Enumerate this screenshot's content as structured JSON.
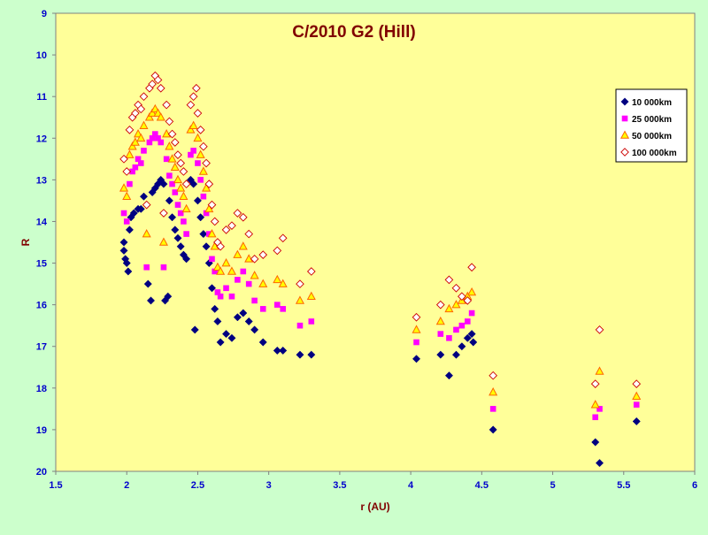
{
  "chart_data": {
    "type": "scatter",
    "title": "C/2010 G2 (Hill)",
    "xlabel": "r (AU)",
    "ylabel": "R",
    "xlim": [
      1.5,
      6
    ],
    "ylim": [
      9,
      20
    ],
    "y_inverted": true,
    "x_ticks": [
      "1.5",
      "2",
      "2.5",
      "3",
      "3.5",
      "4",
      "4.5",
      "5",
      "5.5",
      "6"
    ],
    "y_ticks": [
      "9",
      "10",
      "11",
      "12",
      "13",
      "14",
      "15",
      "16",
      "17",
      "18",
      "19",
      "20"
    ],
    "grid": false,
    "legend_position": "right",
    "colors": {
      "background": "#ccffcc",
      "plot_area": "#ffff99",
      "title": "#800000",
      "axis_text": "#0000cc"
    },
    "series": [
      {
        "name": "10 000km",
        "marker": "diamond",
        "color": "#000080",
        "points": [
          [
            1.98,
            14.5
          ],
          [
            1.98,
            14.7
          ],
          [
            1.99,
            14.9
          ],
          [
            2.0,
            15.0
          ],
          [
            2.01,
            15.2
          ],
          [
            2.02,
            14.2
          ],
          [
            2.03,
            13.9
          ],
          [
            2.05,
            13.8
          ],
          [
            2.08,
            13.7
          ],
          [
            2.1,
            13.7
          ],
          [
            2.12,
            13.4
          ],
          [
            2.15,
            15.5
          ],
          [
            2.17,
            15.9
          ],
          [
            2.18,
            13.3
          ],
          [
            2.2,
            13.2
          ],
          [
            2.22,
            13.1
          ],
          [
            2.24,
            13.0
          ],
          [
            2.26,
            13.1
          ],
          [
            2.27,
            15.9
          ],
          [
            2.29,
            15.8
          ],
          [
            2.3,
            13.5
          ],
          [
            2.32,
            13.9
          ],
          [
            2.34,
            14.2
          ],
          [
            2.36,
            14.4
          ],
          [
            2.38,
            14.6
          ],
          [
            2.4,
            14.8
          ],
          [
            2.42,
            14.9
          ],
          [
            2.45,
            13.0
          ],
          [
            2.47,
            13.1
          ],
          [
            2.5,
            13.5
          ],
          [
            2.52,
            13.9
          ],
          [
            2.54,
            14.3
          ],
          [
            2.56,
            14.6
          ],
          [
            2.58,
            15.0
          ],
          [
            2.6,
            15.6
          ],
          [
            2.62,
            16.1
          ],
          [
            2.64,
            16.4
          ],
          [
            2.66,
            16.9
          ],
          [
            2.48,
            16.6
          ],
          [
            2.7,
            16.7
          ],
          [
            2.74,
            16.8
          ],
          [
            2.78,
            16.3
          ],
          [
            2.82,
            16.2
          ],
          [
            2.86,
            16.4
          ],
          [
            2.9,
            16.6
          ],
          [
            2.96,
            16.9
          ],
          [
            3.06,
            17.1
          ],
          [
            3.1,
            17.1
          ],
          [
            3.22,
            17.2
          ],
          [
            3.3,
            17.2
          ],
          [
            4.04,
            17.3
          ],
          [
            4.21,
            17.2
          ],
          [
            4.27,
            17.7
          ],
          [
            4.32,
            17.2
          ],
          [
            4.36,
            17.0
          ],
          [
            4.4,
            16.8
          ],
          [
            4.43,
            16.7
          ],
          [
            4.44,
            16.9
          ],
          [
            4.58,
            19.0
          ],
          [
            5.3,
            19.3
          ],
          [
            5.33,
            19.8
          ],
          [
            5.59,
            18.8
          ]
        ]
      },
      {
        "name": "25 000km",
        "marker": "square",
        "color": "#ff00ff",
        "points": [
          [
            1.98,
            13.8
          ],
          [
            2.0,
            14.0
          ],
          [
            2.02,
            13.1
          ],
          [
            2.04,
            12.8
          ],
          [
            2.06,
            12.7
          ],
          [
            2.08,
            12.5
          ],
          [
            2.1,
            12.6
          ],
          [
            2.12,
            12.3
          ],
          [
            2.14,
            15.1
          ],
          [
            2.16,
            12.1
          ],
          [
            2.18,
            12.0
          ],
          [
            2.2,
            11.9
          ],
          [
            2.22,
            12.0
          ],
          [
            2.24,
            12.1
          ],
          [
            2.26,
            15.1
          ],
          [
            2.28,
            12.5
          ],
          [
            2.3,
            12.9
          ],
          [
            2.32,
            13.1
          ],
          [
            2.34,
            13.3
          ],
          [
            2.36,
            13.6
          ],
          [
            2.38,
            13.8
          ],
          [
            2.4,
            14.0
          ],
          [
            2.42,
            14.3
          ],
          [
            2.45,
            12.4
          ],
          [
            2.47,
            12.3
          ],
          [
            2.5,
            12.6
          ],
          [
            2.52,
            13.0
          ],
          [
            2.54,
            13.4
          ],
          [
            2.56,
            13.8
          ],
          [
            2.58,
            14.3
          ],
          [
            2.6,
            14.9
          ],
          [
            2.62,
            15.2
          ],
          [
            2.64,
            15.7
          ],
          [
            2.66,
            15.8
          ],
          [
            2.7,
            15.6
          ],
          [
            2.74,
            15.8
          ],
          [
            2.78,
            15.4
          ],
          [
            2.82,
            15.2
          ],
          [
            2.86,
            15.5
          ],
          [
            2.9,
            15.9
          ],
          [
            2.96,
            16.1
          ],
          [
            3.06,
            16.0
          ],
          [
            3.1,
            16.1
          ],
          [
            3.22,
            16.5
          ],
          [
            3.3,
            16.4
          ],
          [
            4.04,
            16.9
          ],
          [
            4.21,
            16.7
          ],
          [
            4.27,
            16.8
          ],
          [
            4.32,
            16.6
          ],
          [
            4.36,
            16.5
          ],
          [
            4.4,
            16.4
          ],
          [
            4.43,
            16.2
          ],
          [
            4.58,
            18.5
          ],
          [
            5.3,
            18.7
          ],
          [
            5.33,
            18.5
          ],
          [
            5.59,
            18.4
          ]
        ]
      },
      {
        "name": "50 000km",
        "marker": "triangle",
        "color": "#ff6600",
        "points": [
          [
            1.98,
            13.2
          ],
          [
            2.0,
            13.4
          ],
          [
            2.02,
            12.4
          ],
          [
            2.04,
            12.2
          ],
          [
            2.06,
            12.1
          ],
          [
            2.08,
            11.9
          ],
          [
            2.1,
            12.0
          ],
          [
            2.12,
            11.7
          ],
          [
            2.14,
            14.3
          ],
          [
            2.16,
            11.5
          ],
          [
            2.18,
            11.4
          ],
          [
            2.2,
            11.3
          ],
          [
            2.22,
            11.4
          ],
          [
            2.24,
            11.5
          ],
          [
            2.26,
            14.5
          ],
          [
            2.28,
            11.9
          ],
          [
            2.3,
            12.2
          ],
          [
            2.32,
            12.5
          ],
          [
            2.34,
            12.7
          ],
          [
            2.36,
            13.0
          ],
          [
            2.38,
            13.2
          ],
          [
            2.4,
            13.4
          ],
          [
            2.42,
            13.7
          ],
          [
            2.45,
            11.8
          ],
          [
            2.47,
            11.7
          ],
          [
            2.5,
            12.0
          ],
          [
            2.52,
            12.4
          ],
          [
            2.54,
            12.8
          ],
          [
            2.56,
            13.2
          ],
          [
            2.58,
            13.7
          ],
          [
            2.6,
            14.3
          ],
          [
            2.62,
            14.6
          ],
          [
            2.64,
            15.1
          ],
          [
            2.66,
            15.2
          ],
          [
            2.7,
            15.0
          ],
          [
            2.74,
            15.2
          ],
          [
            2.78,
            14.8
          ],
          [
            2.82,
            14.6
          ],
          [
            2.86,
            14.9
          ],
          [
            2.9,
            15.3
          ],
          [
            2.96,
            15.5
          ],
          [
            3.06,
            15.4
          ],
          [
            3.1,
            15.5
          ],
          [
            3.22,
            15.9
          ],
          [
            3.3,
            15.8
          ],
          [
            4.04,
            16.6
          ],
          [
            4.21,
            16.4
          ],
          [
            4.27,
            16.1
          ],
          [
            4.32,
            16.0
          ],
          [
            4.36,
            15.9
          ],
          [
            4.4,
            15.8
          ],
          [
            4.43,
            15.7
          ],
          [
            4.58,
            18.1
          ],
          [
            5.3,
            18.4
          ],
          [
            5.33,
            17.6
          ],
          [
            5.59,
            18.2
          ]
        ]
      },
      {
        "name": "100 000km",
        "marker": "diamond-open",
        "color": "#cc0000",
        "points": [
          [
            1.98,
            12.5
          ],
          [
            2.0,
            12.8
          ],
          [
            2.02,
            11.8
          ],
          [
            2.04,
            11.5
          ],
          [
            2.06,
            11.4
          ],
          [
            2.08,
            11.2
          ],
          [
            2.1,
            11.3
          ],
          [
            2.12,
            11.0
          ],
          [
            2.14,
            13.6
          ],
          [
            2.16,
            10.8
          ],
          [
            2.18,
            10.7
          ],
          [
            2.2,
            10.5
          ],
          [
            2.22,
            10.6
          ],
          [
            2.24,
            10.8
          ],
          [
            2.26,
            13.8
          ],
          [
            2.28,
            11.2
          ],
          [
            2.3,
            11.6
          ],
          [
            2.32,
            11.9
          ],
          [
            2.34,
            12.1
          ],
          [
            2.36,
            12.4
          ],
          [
            2.38,
            12.6
          ],
          [
            2.4,
            12.8
          ],
          [
            2.42,
            13.1
          ],
          [
            2.45,
            11.2
          ],
          [
            2.47,
            11.0
          ],
          [
            2.49,
            10.8
          ],
          [
            2.5,
            11.4
          ],
          [
            2.52,
            11.8
          ],
          [
            2.54,
            12.2
          ],
          [
            2.56,
            12.6
          ],
          [
            2.58,
            13.1
          ],
          [
            2.6,
            13.6
          ],
          [
            2.62,
            14.0
          ],
          [
            2.64,
            14.5
          ],
          [
            2.66,
            14.6
          ],
          [
            2.7,
            14.2
          ],
          [
            2.74,
            14.1
          ],
          [
            2.78,
            13.8
          ],
          [
            2.82,
            13.9
          ],
          [
            2.86,
            14.3
          ],
          [
            2.9,
            14.9
          ],
          [
            2.96,
            14.8
          ],
          [
            3.06,
            14.7
          ],
          [
            3.1,
            14.4
          ],
          [
            3.22,
            15.5
          ],
          [
            3.3,
            15.2
          ],
          [
            4.04,
            16.3
          ],
          [
            4.21,
            16.0
          ],
          [
            4.27,
            15.4
          ],
          [
            4.32,
            15.6
          ],
          [
            4.36,
            15.8
          ],
          [
            4.4,
            15.9
          ],
          [
            4.43,
            15.1
          ],
          [
            4.58,
            17.7
          ],
          [
            5.3,
            17.9
          ],
          [
            5.33,
            16.6
          ],
          [
            5.59,
            17.9
          ]
        ]
      }
    ]
  }
}
